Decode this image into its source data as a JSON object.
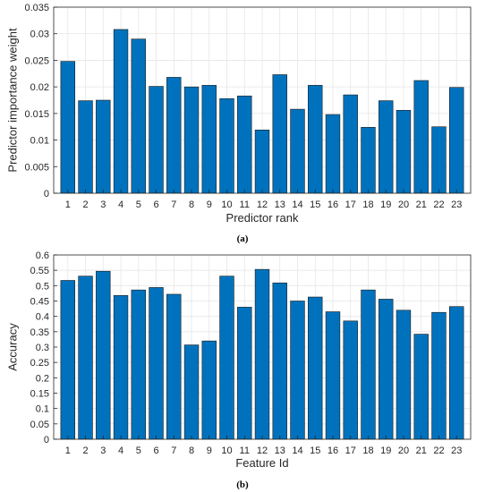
{
  "chart_data": [
    {
      "type": "bar",
      "caption": "(a)",
      "xlabel": "Predictor rank",
      "ylabel": "Predictor importance weight",
      "categories": [
        "1",
        "2",
        "3",
        "4",
        "5",
        "6",
        "7",
        "8",
        "9",
        "10",
        "11",
        "12",
        "13",
        "14",
        "15",
        "16",
        "17",
        "18",
        "19",
        "20",
        "21",
        "22",
        "23"
      ],
      "values": [
        0.0248,
        0.0174,
        0.0175,
        0.0308,
        0.029,
        0.0201,
        0.0218,
        0.02,
        0.0203,
        0.0178,
        0.0183,
        0.0119,
        0.0223,
        0.0158,
        0.0203,
        0.0148,
        0.0185,
        0.0124,
        0.0174,
        0.0156,
        0.0212,
        0.0125,
        0.0199
      ],
      "ylim": [
        0,
        0.035
      ],
      "yticks": [
        0,
        0.005,
        0.01,
        0.015,
        0.02,
        0.025,
        0.03,
        0.035
      ],
      "ytick_labels": [
        "0",
        "0.005",
        "0.01",
        "0.015",
        "0.02",
        "0.025",
        "0.03",
        "0.035"
      ],
      "grid": true,
      "color": "#0072bd"
    },
    {
      "type": "bar",
      "caption": "(b)",
      "xlabel": "Feature Id",
      "ylabel": "Accuracy",
      "categories": [
        "1",
        "2",
        "3",
        "4",
        "5",
        "6",
        "7",
        "8",
        "9",
        "10",
        "11",
        "12",
        "13",
        "14",
        "15",
        "16",
        "17",
        "18",
        "19",
        "20",
        "21",
        "22",
        "23"
      ],
      "values": [
        0.517,
        0.531,
        0.547,
        0.468,
        0.486,
        0.494,
        0.472,
        0.307,
        0.32,
        0.531,
        0.43,
        0.553,
        0.509,
        0.45,
        0.463,
        0.415,
        0.385,
        0.486,
        0.456,
        0.42,
        0.342,
        0.413,
        0.432
      ],
      "ylim": [
        0,
        0.6
      ],
      "yticks": [
        0,
        0.05,
        0.1,
        0.15,
        0.2,
        0.25,
        0.3,
        0.35,
        0.4,
        0.45,
        0.5,
        0.55,
        0.6
      ],
      "ytick_labels": [
        "0",
        "0.05",
        "0.1",
        "0.15",
        "0.2",
        "0.25",
        "0.3",
        "0.35",
        "0.4",
        "0.45",
        "0.5",
        "0.55",
        "0.6"
      ],
      "grid": true,
      "color": "#0072bd"
    }
  ]
}
